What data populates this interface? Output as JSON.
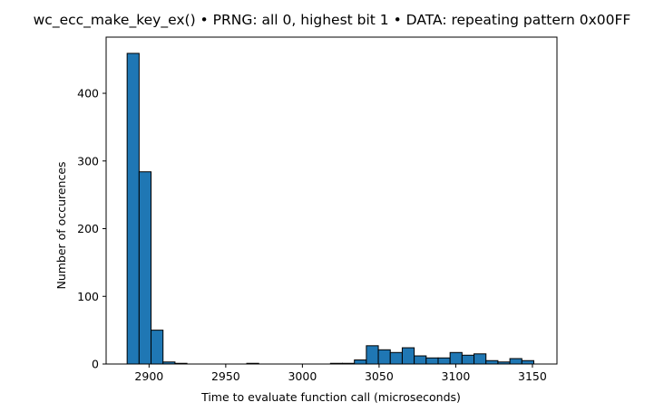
{
  "chart_data": {
    "type": "bar",
    "title": "wc_ecc_make_key_ex() • PRNG: all 0, highest bit 1 • DATA: repeating pattern 0x00FF",
    "xlabel": "Time to evaluate function call (microseconds)",
    "ylabel": "Number of occurences",
    "xlim": [
      2872,
      3166
    ],
    "ylim": [
      0,
      483
    ],
    "xticks": [
      2900,
      2950,
      3000,
      3050,
      3100,
      3150
    ],
    "yticks": [
      0,
      100,
      200,
      300,
      400
    ],
    "bar_color": "#1f77b4",
    "edge_color": "#000000",
    "grid": false,
    "bins": [
      {
        "x0": 2885.7,
        "x1": 2893.5,
        "count": 459
      },
      {
        "x0": 2893.5,
        "x1": 2901.3,
        "count": 284
      },
      {
        "x0": 2901.3,
        "x1": 2909.1,
        "count": 50
      },
      {
        "x0": 2909.1,
        "x1": 2916.9,
        "count": 3
      },
      {
        "x0": 2916.9,
        "x1": 2924.7,
        "count": 1
      },
      {
        "x0": 2924.7,
        "x1": 2932.5,
        "count": 0
      },
      {
        "x0": 2932.5,
        "x1": 2940.3,
        "count": 0
      },
      {
        "x0": 2940.3,
        "x1": 2948.1,
        "count": 0
      },
      {
        "x0": 2948.1,
        "x1": 2955.9,
        "count": 0
      },
      {
        "x0": 2955.9,
        "x1": 2963.7,
        "count": 0
      },
      {
        "x0": 2963.7,
        "x1": 2971.5,
        "count": 1
      },
      {
        "x0": 2971.5,
        "x1": 2979.3,
        "count": 0
      },
      {
        "x0": 2979.3,
        "x1": 2987.1,
        "count": 0
      },
      {
        "x0": 2987.1,
        "x1": 2994.9,
        "count": 0
      },
      {
        "x0": 2994.9,
        "x1": 3002.7,
        "count": 0
      },
      {
        "x0": 3002.7,
        "x1": 3010.5,
        "count": 0
      },
      {
        "x0": 3010.5,
        "x1": 3018.3,
        "count": 0
      },
      {
        "x0": 3018.3,
        "x1": 3026.1,
        "count": 1
      },
      {
        "x0": 3026.1,
        "x1": 3033.9,
        "count": 1
      },
      {
        "x0": 3033.9,
        "x1": 3041.7,
        "count": 6
      },
      {
        "x0": 3041.7,
        "x1": 3049.5,
        "count": 27
      },
      {
        "x0": 3049.5,
        "x1": 3057.3,
        "count": 21
      },
      {
        "x0": 3057.3,
        "x1": 3065.1,
        "count": 17
      },
      {
        "x0": 3065.1,
        "x1": 3072.9,
        "count": 24
      },
      {
        "x0": 3072.9,
        "x1": 3080.7,
        "count": 12
      },
      {
        "x0": 3080.7,
        "x1": 3088.5,
        "count": 9
      },
      {
        "x0": 3088.5,
        "x1": 3096.3,
        "count": 9
      },
      {
        "x0": 3096.3,
        "x1": 3104.1,
        "count": 17
      },
      {
        "x0": 3104.1,
        "x1": 3111.9,
        "count": 13
      },
      {
        "x0": 3111.9,
        "x1": 3119.7,
        "count": 15
      },
      {
        "x0": 3119.7,
        "x1": 3127.5,
        "count": 5
      },
      {
        "x0": 3127.5,
        "x1": 3135.3,
        "count": 3
      },
      {
        "x0": 3135.3,
        "x1": 3143.1,
        "count": 8
      },
      {
        "x0": 3143.1,
        "x1": 3150.9,
        "count": 5
      }
    ]
  }
}
